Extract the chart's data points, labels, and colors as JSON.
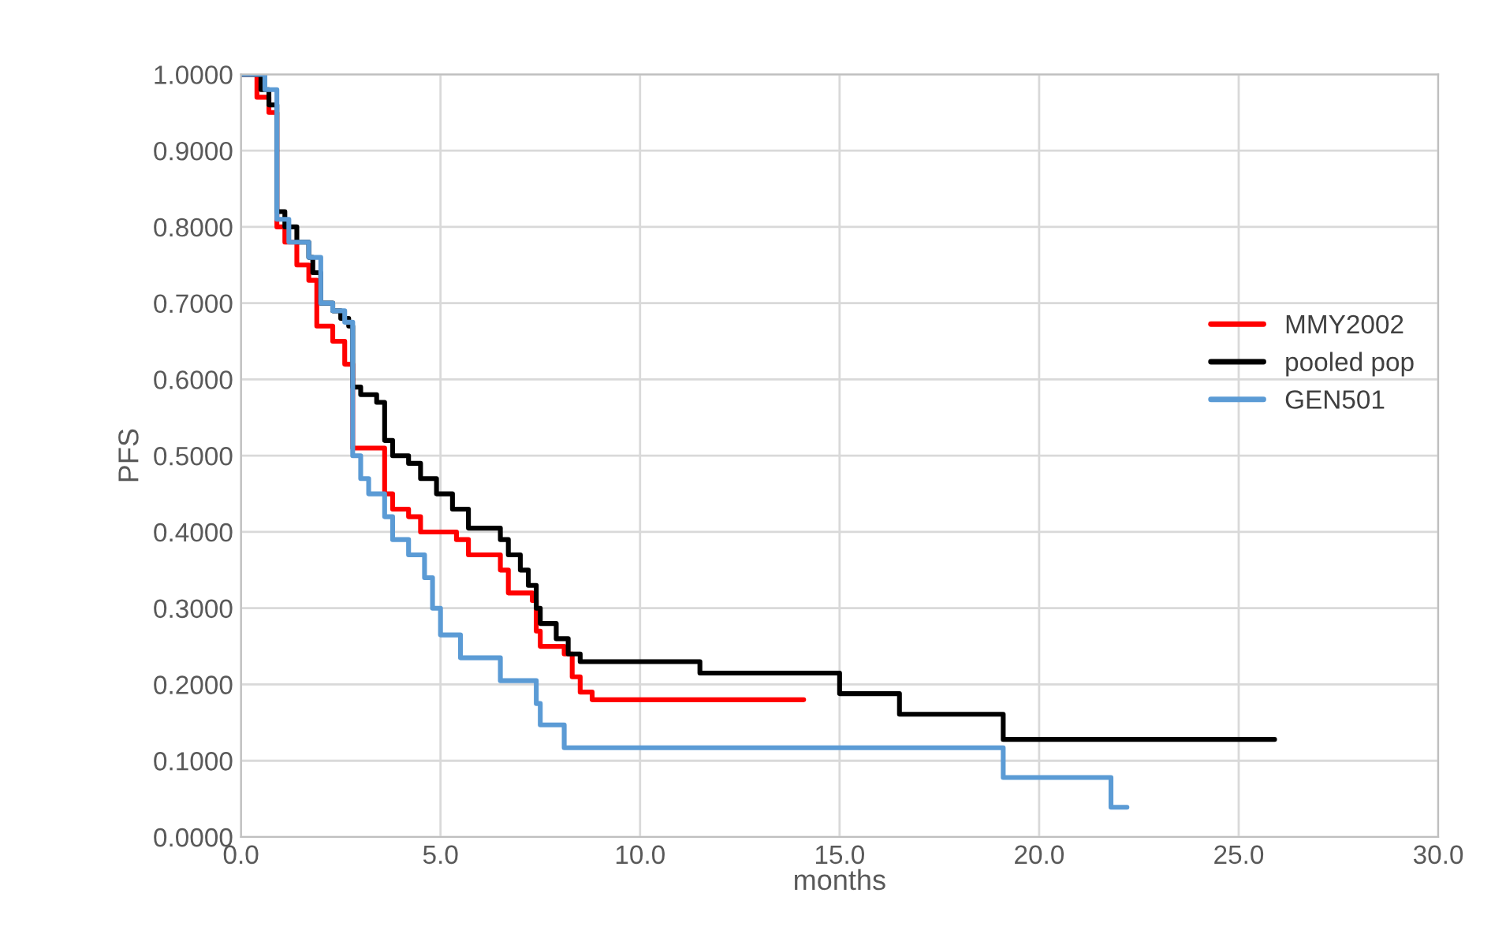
{
  "chart_data": {
    "type": "step",
    "xlabel": "months",
    "ylabel": "PFS",
    "series": [
      {
        "name": "MMY2002",
        "color": "#ff0000",
        "x": [
          0,
          0.4,
          0.7,
          0.9,
          1.1,
          1.4,
          1.7,
          1.9,
          2.3,
          2.6,
          2.8,
          3.6,
          3.8,
          4.2,
          4.5,
          5.4,
          5.7,
          6.5,
          6.7,
          7.3,
          7.4,
          7.5,
          8.1,
          8.3,
          8.5,
          8.8,
          14.1
        ],
        "values": [
          1.0,
          0.97,
          0.95,
          0.8,
          0.78,
          0.75,
          0.73,
          0.67,
          0.65,
          0.62,
          0.51,
          0.45,
          0.43,
          0.42,
          0.4,
          0.39,
          0.37,
          0.35,
          0.32,
          0.31,
          0.27,
          0.25,
          0.24,
          0.21,
          0.19,
          0.18,
          0.18
        ]
      },
      {
        "name": "pooled pop",
        "color": "#000000",
        "x": [
          0,
          0.5,
          0.7,
          0.9,
          1.1,
          1.4,
          1.7,
          1.8,
          2.0,
          2.3,
          2.5,
          2.7,
          2.8,
          3.0,
          3.4,
          3.6,
          3.8,
          4.2,
          4.5,
          4.9,
          5.3,
          5.7,
          6.5,
          6.7,
          7.0,
          7.2,
          7.4,
          7.5,
          7.9,
          8.2,
          8.5,
          11.5,
          15.0,
          16.5,
          19.1,
          25.9
        ],
        "values": [
          1.0,
          0.98,
          0.96,
          0.82,
          0.8,
          0.78,
          0.76,
          0.74,
          0.7,
          0.69,
          0.68,
          0.67,
          0.59,
          0.58,
          0.57,
          0.52,
          0.5,
          0.49,
          0.47,
          0.45,
          0.43,
          0.405,
          0.39,
          0.37,
          0.35,
          0.33,
          0.3,
          0.28,
          0.26,
          0.24,
          0.23,
          0.215,
          0.188,
          0.161,
          0.128,
          0.128
        ]
      },
      {
        "name": "GEN501",
        "color": "#5b9bd5",
        "x": [
          0,
          0.6,
          0.9,
          1.2,
          1.7,
          2.0,
          2.3,
          2.6,
          2.8,
          3.0,
          3.2,
          3.6,
          3.8,
          4.2,
          4.6,
          4.8,
          5.0,
          5.5,
          6.5,
          7.4,
          7.5,
          8.1,
          19.1,
          21.8,
          22.2
        ],
        "values": [
          1.0,
          0.98,
          0.81,
          0.78,
          0.76,
          0.7,
          0.69,
          0.675,
          0.5,
          0.47,
          0.45,
          0.42,
          0.39,
          0.37,
          0.34,
          0.3,
          0.265,
          0.235,
          0.205,
          0.175,
          0.147,
          0.117,
          0.078,
          0.039,
          0.039
        ]
      }
    ],
    "xlim": [
      0,
      30
    ],
    "ylim": [
      0,
      1
    ],
    "xticks": [
      {
        "value": 0,
        "label": "0.0"
      },
      {
        "value": 5,
        "label": "5.0"
      },
      {
        "value": 10,
        "label": "10.0"
      },
      {
        "value": 15,
        "label": "15.0"
      },
      {
        "value": 20,
        "label": "20.0"
      },
      {
        "value": 25,
        "label": "25.0"
      },
      {
        "value": 30,
        "label": "30.0"
      }
    ],
    "yticks": [
      {
        "value": 0,
        "label": "0.0000"
      },
      {
        "value": 0.1,
        "label": "0.1000"
      },
      {
        "value": 0.2,
        "label": "0.2000"
      },
      {
        "value": 0.3,
        "label": "0.3000"
      },
      {
        "value": 0.4,
        "label": "0.4000"
      },
      {
        "value": 0.5,
        "label": "0.5000"
      },
      {
        "value": 0.6,
        "label": "0.6000"
      },
      {
        "value": 0.7,
        "label": "0.7000"
      },
      {
        "value": 0.8,
        "label": "0.8000"
      },
      {
        "value": 0.9,
        "label": "0.9000"
      },
      {
        "value": 1,
        "label": "1.0000"
      }
    ],
    "grid": true,
    "legend": "center right"
  }
}
